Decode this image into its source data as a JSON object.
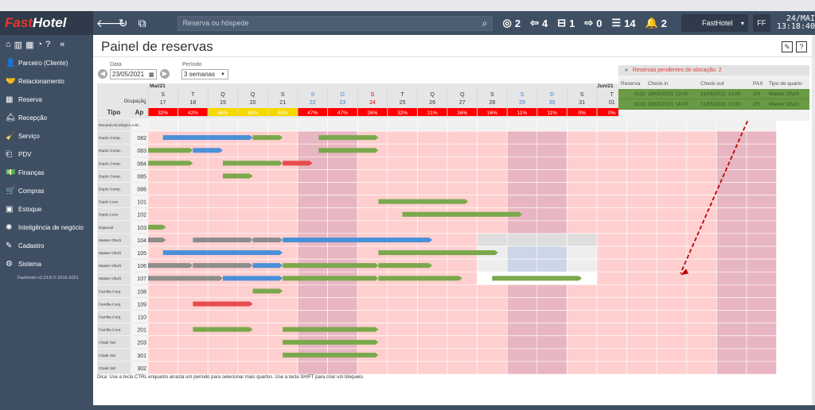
{
  "brand": {
    "part1": "Fast",
    "part2": "Hotel"
  },
  "topbar": {
    "search_placeholder": "Reserva ou hóspede",
    "stats": [
      {
        "icon": "target-icon",
        "glyph": "◎",
        "value": "2"
      },
      {
        "icon": "checkin-icon",
        "glyph": "⇦",
        "value": "4"
      },
      {
        "icon": "bed-icon",
        "glyph": "⊟",
        "value": "1"
      },
      {
        "icon": "checkout-icon",
        "glyph": "⇨",
        "value": "0"
      },
      {
        "icon": "list-icon",
        "glyph": "☰",
        "value": "14"
      },
      {
        "icon": "bell-icon",
        "glyph": "🔔",
        "value": "2"
      }
    ],
    "hotel": "FastHotel",
    "user": "FF",
    "date": "24/MAI",
    "time": "13:18:40"
  },
  "sidebar": {
    "items": [
      {
        "name": "parceiro",
        "icon": "user-icon",
        "glyph": "👤",
        "label": "Parceiro (Cliente)"
      },
      {
        "name": "relacionamento",
        "icon": "handshake-icon",
        "glyph": "🤝",
        "label": "Relacionamento"
      },
      {
        "name": "reserva",
        "icon": "calendar-icon",
        "glyph": "▦",
        "label": "Reserva"
      },
      {
        "name": "recepcao",
        "icon": "bell-service-icon",
        "glyph": "🛎",
        "label": "Recepção"
      },
      {
        "name": "servico",
        "icon": "broom-icon",
        "glyph": "🧹",
        "label": "Serviço"
      },
      {
        "name": "pdv",
        "icon": "pos-icon",
        "glyph": "⎗",
        "label": "PDV"
      },
      {
        "name": "financas",
        "icon": "money-icon",
        "glyph": "💵",
        "label": "Finanças"
      },
      {
        "name": "compras",
        "icon": "cart-icon",
        "glyph": "🛒",
        "label": "Compras"
      },
      {
        "name": "estoque",
        "icon": "box-icon",
        "glyph": "▣",
        "label": "Estoque"
      },
      {
        "name": "inteligencia",
        "icon": "brain-icon",
        "glyph": "✺",
        "label": "Inteligência de negócio"
      },
      {
        "name": "cadastro",
        "icon": "edit-icon",
        "glyph": "✎",
        "label": "Cadastro"
      },
      {
        "name": "sistema",
        "icon": "gear-icon",
        "glyph": "⚙",
        "label": "Sistema"
      }
    ],
    "version": "FastHotel v2.23.8 © 2016-2021"
  },
  "page": {
    "title": "Painel de reservas",
    "date_label": "Data",
    "date_value": "23/05/2021",
    "period_label": "Período",
    "period_value": "3 semanas",
    "tip": "Dica: Use a tecla CTRL enquanto arrasta um período para selecionar mais quartos. Use a tecla SHIFT para criar um bloqueio."
  },
  "grid": {
    "month1": "Mai/21",
    "month2": "Jun/21",
    "occupancy_label": "Ocupação",
    "col_tipo": "Tipo",
    "col_ap": "Ap",
    "days": [
      {
        "dow": "S",
        "day": "17",
        "occ": "32%",
        "occ_color": "#ff0000",
        "day_color": "#333"
      },
      {
        "dow": "T",
        "day": "18",
        "occ": "42%",
        "occ_color": "#ff0000",
        "day_color": "#333"
      },
      {
        "dow": "Q",
        "day": "19",
        "occ": "68%",
        "occ_color": "#f5d800",
        "day_color": "#333"
      },
      {
        "dow": "Q",
        "day": "20",
        "occ": "68%",
        "occ_color": "#f5d800",
        "day_color": "#333"
      },
      {
        "dow": "S",
        "day": "21",
        "occ": "63%",
        "occ_color": "#f5d800",
        "day_color": "#333"
      },
      {
        "dow": "S",
        "day": "22",
        "occ": "47%",
        "occ_color": "#ff0000",
        "day_color": "#3a7fd5"
      },
      {
        "dow": "D",
        "day": "23",
        "occ": "47%",
        "occ_color": "#ff0000",
        "day_color": "#3a7fd5"
      },
      {
        "dow": "S",
        "day": "24",
        "occ": "26%",
        "occ_color": "#ff0000",
        "day_color": "#e60000"
      },
      {
        "dow": "T",
        "day": "25",
        "occ": "32%",
        "occ_color": "#ff0000",
        "day_color": "#333"
      },
      {
        "dow": "Q",
        "day": "26",
        "occ": "21%",
        "occ_color": "#ff0000",
        "day_color": "#333"
      },
      {
        "dow": "Q",
        "day": "27",
        "occ": "16%",
        "occ_color": "#ff0000",
        "day_color": "#333"
      },
      {
        "dow": "S",
        "day": "28",
        "occ": "16%",
        "occ_color": "#ff0000",
        "day_color": "#333"
      },
      {
        "dow": "S",
        "day": "29",
        "occ": "11%",
        "occ_color": "#ff0000",
        "day_color": "#3a7fd5"
      },
      {
        "dow": "D",
        "day": "30",
        "occ": "11%",
        "occ_color": "#ff0000",
        "day_color": "#3a7fd5"
      },
      {
        "dow": "S",
        "day": "31",
        "occ": "0%",
        "occ_color": "#ff0000",
        "day_color": "#333"
      },
      {
        "dow": "T",
        "day": "01",
        "occ": "0%",
        "occ_color": "#ff0000",
        "day_color": "#333"
      },
      {
        "dow": "",
        "day": "",
        "occ": "",
        "occ_color": "#ff0000",
        "day_color": "#333"
      },
      {
        "dow": "",
        "day": "",
        "occ": "",
        "occ_color": "#ff0000",
        "day_color": "#333"
      },
      {
        "dow": "",
        "day": "",
        "occ": "",
        "occ_color": "#ff0000",
        "day_color": "#333"
      },
      {
        "dow": "",
        "day": "",
        "occ": "",
        "occ_color": "#ff0000",
        "day_color": "#333"
      },
      {
        "dow": "",
        "day": "",
        "occ": "",
        "occ_color": "#ff0000",
        "day_color": "#333"
      }
    ],
    "rooms": [
      {
        "tipo": "Recanto Ecológico e Bl...",
        "ap": ""
      },
      {
        "tipo": "Duplo Comp.",
        "ap": "082"
      },
      {
        "tipo": "Duplo Comp.",
        "ap": "083"
      },
      {
        "tipo": "Duplo Comp.",
        "ap": "084"
      },
      {
        "tipo": "Duplo Comp.",
        "ap": "085"
      },
      {
        "tipo": "Duplo Comp.",
        "ap": "086"
      },
      {
        "tipo": "Duplo Luxo",
        "ap": "101"
      },
      {
        "tipo": "Duplo Luxo",
        "ap": "102"
      },
      {
        "tipo": "Especial",
        "ap": "103"
      },
      {
        "tipo": "Master Ofurô",
        "ap": "104"
      },
      {
        "tipo": "Master Ofurô",
        "ap": "105"
      },
      {
        "tipo": "Master Ofurô",
        "ap": "106"
      },
      {
        "tipo": "Master Ofurô",
        "ap": "107"
      },
      {
        "tipo": "Família Conj.",
        "ap": "108"
      },
      {
        "tipo": "Família Conj.",
        "ap": "109"
      },
      {
        "tipo": "Família Conj.",
        "ap": "110"
      },
      {
        "tipo": "Família Conj.",
        "ap": "201"
      },
      {
        "tipo": "Chalé Std",
        "ap": "203"
      },
      {
        "tipo": "Chalé Std",
        "ap": "301"
      },
      {
        "tipo": "Chalé Std",
        "ap": "302"
      }
    ],
    "bars": [
      {
        "row": 1,
        "start": 0.5,
        "end": 3.5,
        "color": "blue"
      },
      {
        "row": 1,
        "start": 3.5,
        "end": 4.5,
        "color": "green"
      },
      {
        "row": 1,
        "start": 5.7,
        "end": 7.7,
        "color": "green"
      },
      {
        "row": 2,
        "start": 0,
        "end": 1.5,
        "color": "green"
      },
      {
        "row": 2,
        "start": 1.5,
        "end": 2.5,
        "color": "blue"
      },
      {
        "row": 2,
        "start": 5.7,
        "end": 7.7,
        "color": "green"
      },
      {
        "row": 3,
        "start": 0,
        "end": 1.5,
        "color": "green"
      },
      {
        "row": 3,
        "start": 2.5,
        "end": 4.5,
        "color": "green"
      },
      {
        "row": 3,
        "start": 4.5,
        "end": 5.5,
        "color": "red"
      },
      {
        "row": 4,
        "start": 2.5,
        "end": 3.5,
        "color": "green"
      },
      {
        "row": 6,
        "start": 7.7,
        "end": 10.7,
        "color": "green"
      },
      {
        "row": 7,
        "start": 8.5,
        "end": 12.5,
        "color": "green"
      },
      {
        "row": 8,
        "start": 0,
        "end": 0.6,
        "color": "green"
      },
      {
        "row": 9,
        "start": 0,
        "end": 0.6,
        "color": "gray"
      },
      {
        "row": 9,
        "start": 1.5,
        "end": 3.5,
        "color": "gray"
      },
      {
        "row": 9,
        "start": 3.5,
        "end": 4.5,
        "color": "gray"
      },
      {
        "row": 9,
        "start": 4.5,
        "end": 9.5,
        "color": "blue"
      },
      {
        "row": 10,
        "start": 0.5,
        "end": 4.5,
        "color": "blue"
      },
      {
        "row": 10,
        "start": 7.7,
        "end": 11.7,
        "color": "green"
      },
      {
        "row": 11,
        "start": 0,
        "end": 1.5,
        "color": "gray"
      },
      {
        "row": 11,
        "start": 1.5,
        "end": 3.5,
        "color": "gray"
      },
      {
        "row": 11,
        "start": 3.5,
        "end": 4.5,
        "color": "blue"
      },
      {
        "row": 11,
        "start": 4.5,
        "end": 7.7,
        "color": "green"
      },
      {
        "row": 11,
        "start": 7.7,
        "end": 9.5,
        "color": "green"
      },
      {
        "row": 12,
        "start": 0,
        "end": 2.5,
        "color": "gray"
      },
      {
        "row": 12,
        "start": 2.5,
        "end": 4.5,
        "color": "blue"
      },
      {
        "row": 12,
        "start": 4.5,
        "end": 7.7,
        "color": "green"
      },
      {
        "row": 12,
        "start": 7.7,
        "end": 10.5,
        "color": "green"
      },
      {
        "row": 12,
        "start": 11.5,
        "end": 14.5,
        "color": "green"
      },
      {
        "row": 13,
        "start": 3.5,
        "end": 4.5,
        "color": "green"
      },
      {
        "row": 14,
        "start": 1.5,
        "end": 3.5,
        "color": "red"
      },
      {
        "row": 16,
        "start": 1.5,
        "end": 3.5,
        "color": "green"
      },
      {
        "row": 16,
        "start": 4.5,
        "end": 7.7,
        "color": "green"
      },
      {
        "row": 17,
        "start": 4.5,
        "end": 7.7,
        "color": "green"
      },
      {
        "row": 18,
        "start": 4.5,
        "end": 7.7,
        "color": "green"
      }
    ],
    "colors": {
      "cell": "#ffcfcf",
      "cell_weekend": "#e8b6c2",
      "cell_white": "#ffffff",
      "cell_blocked": "#dedede",
      "header": "#e6e6e6",
      "green": "#7aa84c",
      "blue": "#4a90d9",
      "gray": "#8d8d8d",
      "red": "#e84c4c",
      "arrow": "#c00000"
    }
  },
  "pending": {
    "header": "Reservas pendentes de alocação: 2",
    "columns": [
      "Reserva",
      "Check-in",
      "Check-out",
      "PAX",
      "Tipo de quarto"
    ],
    "rows": [
      [
        "3132",
        "28/05/2021 13:00",
        "31/05/2021 13:00",
        "2/0",
        "Master Ofurô"
      ],
      [
        "3133",
        "28/05/2021 14:00",
        "31/05/2021 13:00",
        "2/0",
        "Master Ofurô"
      ]
    ]
  }
}
